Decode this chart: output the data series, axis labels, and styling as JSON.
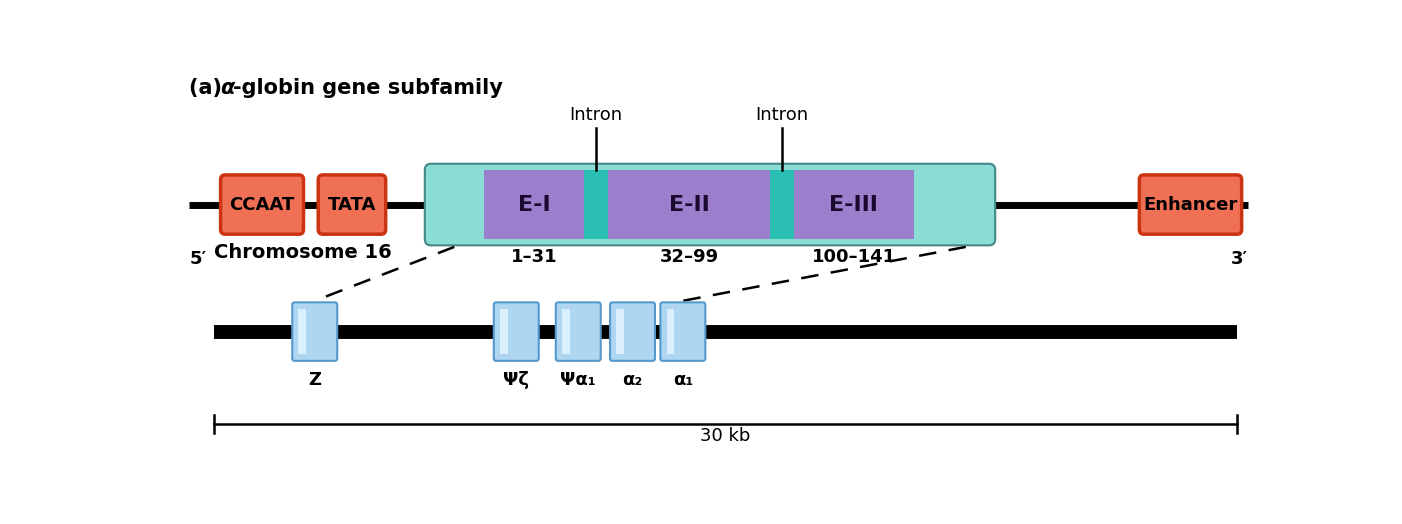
{
  "bg_color": "#ffffff",
  "gene_bar_color": "#8ADDD4",
  "exon_color": "#9B7FCC",
  "intron_color": "#2ABFB2",
  "regulatory_color": "#F07055",
  "regulatory_border": "#CC3311",
  "chrom_gene_color": "#AED6F1",
  "chrom_gene_highlight": "#daeeff",
  "chrom_gene_edge": "#5599cc",
  "exon1_label": "E-I",
  "exon2_label": "E-II",
  "exon3_label": "E-III",
  "exon1_range": "1–31",
  "exon2_range": "32–99",
  "exon3_range": "100–141",
  "intron_label": "Intron",
  "chrom_label": "Chromosome 16",
  "kb_label": "30 kb",
  "gene_names": [
    "Z",
    "Ψζ",
    "Ψα₁",
    "α₂",
    "α₁"
  ],
  "five_prime": "5′",
  "three_prime": "3′",
  "ccaat_label": "CCAAT",
  "tata_label": "TATA",
  "enhancer_label": "Enhancer"
}
